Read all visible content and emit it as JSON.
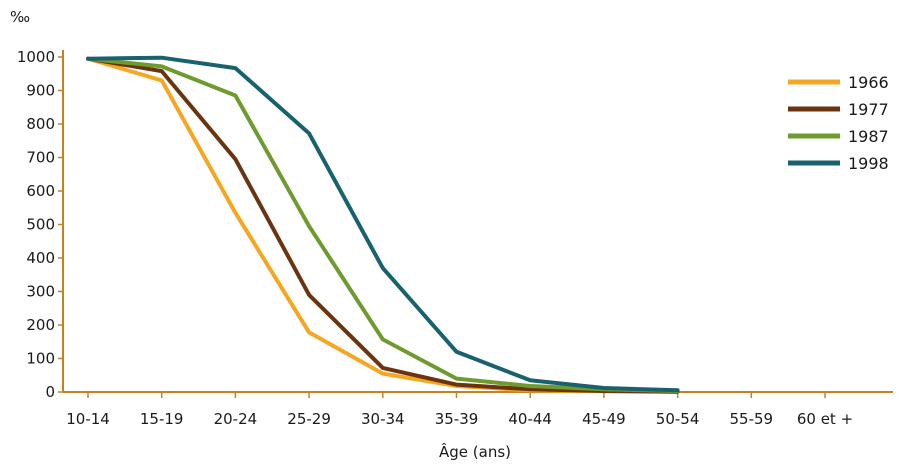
{
  "chart_data": {
    "type": "line",
    "ylabel": "‰",
    "xlabel": "Âge (ans)",
    "categories": [
      "10-14",
      "15-19",
      "20-24",
      "25-29",
      "30-34",
      "35-39",
      "40-44",
      "45-49",
      "50-54",
      "55-59",
      "60 et +"
    ],
    "ylim": [
      0,
      1000
    ],
    "yticks": [
      0,
      100,
      200,
      300,
      400,
      500,
      600,
      700,
      800,
      900,
      1000
    ],
    "legend_position": "right",
    "grid": false,
    "series": [
      {
        "name": "1966",
        "color": "#F5A623",
        "values": [
          995,
          930,
          535,
          178,
          55,
          18,
          5,
          2,
          1,
          null,
          null
        ]
      },
      {
        "name": "1977",
        "color": "#6B3410",
        "values": [
          995,
          958,
          695,
          290,
          72,
          22,
          8,
          3,
          1,
          null,
          null
        ]
      },
      {
        "name": "1987",
        "color": "#6E9B2E",
        "values": [
          995,
          972,
          885,
          495,
          157,
          40,
          18,
          8,
          3,
          null,
          null
        ]
      },
      {
        "name": "1998",
        "color": "#17626E",
        "values": [
          995,
          998,
          967,
          772,
          370,
          120,
          35,
          12,
          5,
          null,
          null
        ]
      }
    ],
    "axis_color": "#C8811F"
  }
}
